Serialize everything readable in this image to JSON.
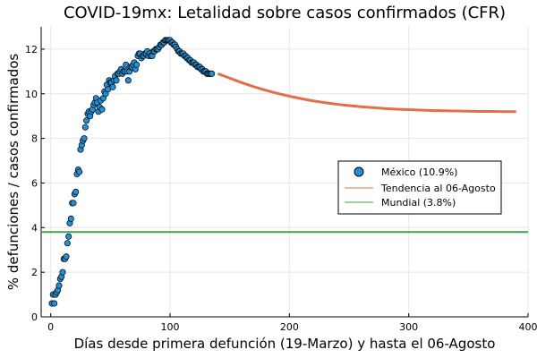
{
  "chart_data": {
    "type": "scatter",
    "title": "COVID-19mx: Letalidad sobre casos confirmados (CFR)",
    "xlabel": "Días desde primera defunción (19-Marzo) y hasta el 06-Agosto",
    "ylabel": "% defunciones / casos confirmados",
    "xlim": [
      -8,
      400
    ],
    "ylim": [
      0,
      13
    ],
    "xticks": [
      0,
      100,
      200,
      300,
      400
    ],
    "yticks": [
      0,
      2,
      4,
      6,
      8,
      10,
      12
    ],
    "grid": true,
    "legend_position": "right",
    "series": [
      {
        "name": "México (10.9%)",
        "kind": "scatter",
        "color": "#1f8fd6",
        "points": [
          [
            1,
            0.6
          ],
          [
            2,
            1.0
          ],
          [
            3,
            0.6
          ],
          [
            4,
            1.0
          ],
          [
            5,
            1.1
          ],
          [
            6,
            1.2
          ],
          [
            7,
            1.4
          ],
          [
            8,
            1.7
          ],
          [
            9,
            1.8
          ],
          [
            10,
            2.0
          ],
          [
            11,
            2.6
          ],
          [
            12,
            2.6
          ],
          [
            13,
            2.7
          ],
          [
            14,
            3.3
          ],
          [
            15,
            3.6
          ],
          [
            16,
            4.2
          ],
          [
            17,
            4.4
          ],
          [
            18,
            5.1
          ],
          [
            19,
            5.1
          ],
          [
            20,
            5.5
          ],
          [
            21,
            5.6
          ],
          [
            22,
            6.4
          ],
          [
            23,
            6.6
          ],
          [
            24,
            6.5
          ],
          [
            25,
            7.5
          ],
          [
            26,
            7.7
          ],
          [
            27,
            7.9
          ],
          [
            28,
            8.0
          ],
          [
            29,
            8.5
          ],
          [
            30,
            8.8
          ],
          [
            31,
            9.1
          ],
          [
            32,
            9.2
          ],
          [
            33,
            9.0
          ],
          [
            34,
            9.2
          ],
          [
            35,
            9.3
          ],
          [
            36,
            9.5
          ],
          [
            37,
            9.6
          ],
          [
            38,
            9.8
          ],
          [
            39,
            9.6
          ],
          [
            40,
            9.2
          ],
          [
            41,
            9.4
          ],
          [
            42,
            9.7
          ],
          [
            43,
            9.3
          ],
          [
            44,
            9.8
          ],
          [
            45,
            10.1
          ],
          [
            46,
            10.0
          ],
          [
            47,
            10.4
          ],
          [
            48,
            10.2
          ],
          [
            49,
            10.6
          ],
          [
            50,
            10.5
          ],
          [
            51,
            10.5
          ],
          [
            52,
            10.3
          ],
          [
            53,
            10.6
          ],
          [
            54,
            10.8
          ],
          [
            55,
            10.6
          ],
          [
            56,
            10.9
          ],
          [
            57,
            10.9
          ],
          [
            58,
            11.0
          ],
          [
            59,
            11.1
          ],
          [
            60,
            10.9
          ],
          [
            61,
            11.0
          ],
          [
            62,
            11.0
          ],
          [
            63,
            11.3
          ],
          [
            64,
            11.0
          ],
          [
            65,
            10.6
          ],
          [
            66,
            11.0
          ],
          [
            67,
            11.2
          ],
          [
            68,
            11.2
          ],
          [
            69,
            11.3
          ],
          [
            70,
            11.4
          ],
          [
            71,
            11.1
          ],
          [
            72,
            11.3
          ],
          [
            73,
            11.7
          ],
          [
            74,
            11.8
          ],
          [
            75,
            11.8
          ],
          [
            76,
            11.6
          ],
          [
            77,
            11.7
          ],
          [
            78,
            11.7
          ],
          [
            79,
            11.8
          ],
          [
            80,
            11.8
          ],
          [
            81,
            11.9
          ],
          [
            82,
            11.7
          ],
          [
            83,
            11.8
          ],
          [
            84,
            11.7
          ],
          [
            85,
            11.7
          ],
          [
            86,
            11.9
          ],
          [
            87,
            11.9
          ],
          [
            88,
            12.0
          ],
          [
            89,
            12.0
          ],
          [
            90,
            12.0
          ],
          [
            91,
            12.1
          ],
          [
            92,
            12.2
          ],
          [
            93,
            12.2
          ],
          [
            94,
            12.3
          ],
          [
            95,
            12.3
          ],
          [
            96,
            12.4
          ],
          [
            97,
            12.4
          ],
          [
            98,
            12.4
          ],
          [
            99,
            12.4
          ],
          [
            100,
            12.4
          ],
          [
            101,
            12.3
          ],
          [
            102,
            12.3
          ],
          [
            103,
            12.2
          ],
          [
            104,
            12.2
          ],
          [
            105,
            12.1
          ],
          [
            106,
            12.0
          ],
          [
            107,
            11.9
          ],
          [
            108,
            11.9
          ],
          [
            109,
            11.8
          ],
          [
            110,
            11.8
          ],
          [
            111,
            11.8
          ],
          [
            112,
            11.7
          ],
          [
            113,
            11.7
          ],
          [
            114,
            11.6
          ],
          [
            115,
            11.6
          ],
          [
            116,
            11.5
          ],
          [
            117,
            11.5
          ],
          [
            118,
            11.4
          ],
          [
            119,
            11.4
          ],
          [
            120,
            11.4
          ],
          [
            121,
            11.3
          ],
          [
            122,
            11.3
          ],
          [
            123,
            11.2
          ],
          [
            124,
            11.2
          ],
          [
            125,
            11.2
          ],
          [
            126,
            11.1
          ],
          [
            127,
            11.1
          ],
          [
            128,
            11.0
          ],
          [
            129,
            11.0
          ],
          [
            130,
            11.0
          ],
          [
            131,
            10.9
          ],
          [
            132,
            10.9
          ],
          [
            133,
            10.9
          ],
          [
            134,
            10.9
          ],
          [
            135,
            10.9
          ]
        ]
      },
      {
        "name": "Tendencia al 06-Agosto",
        "kind": "line",
        "color": "#e26f46",
        "points": [
          [
            140,
            10.9
          ],
          [
            150,
            10.7
          ],
          [
            160,
            10.5
          ],
          [
            170,
            10.32
          ],
          [
            180,
            10.16
          ],
          [
            190,
            10.02
          ],
          [
            200,
            9.89
          ],
          [
            210,
            9.78
          ],
          [
            220,
            9.68
          ],
          [
            230,
            9.6
          ],
          [
            240,
            9.53
          ],
          [
            250,
            9.47
          ],
          [
            260,
            9.42
          ],
          [
            270,
            9.38
          ],
          [
            280,
            9.34
          ],
          [
            290,
            9.31
          ],
          [
            300,
            9.29
          ],
          [
            310,
            9.27
          ],
          [
            320,
            9.25
          ],
          [
            330,
            9.24
          ],
          [
            340,
            9.23
          ],
          [
            350,
            9.22
          ],
          [
            360,
            9.21
          ],
          [
            370,
            9.21
          ],
          [
            380,
            9.2
          ],
          [
            390,
            9.2
          ]
        ]
      },
      {
        "name": "Mundial (3.8%)",
        "kind": "hline",
        "color": "#3da44d",
        "value": 3.8
      }
    ]
  }
}
